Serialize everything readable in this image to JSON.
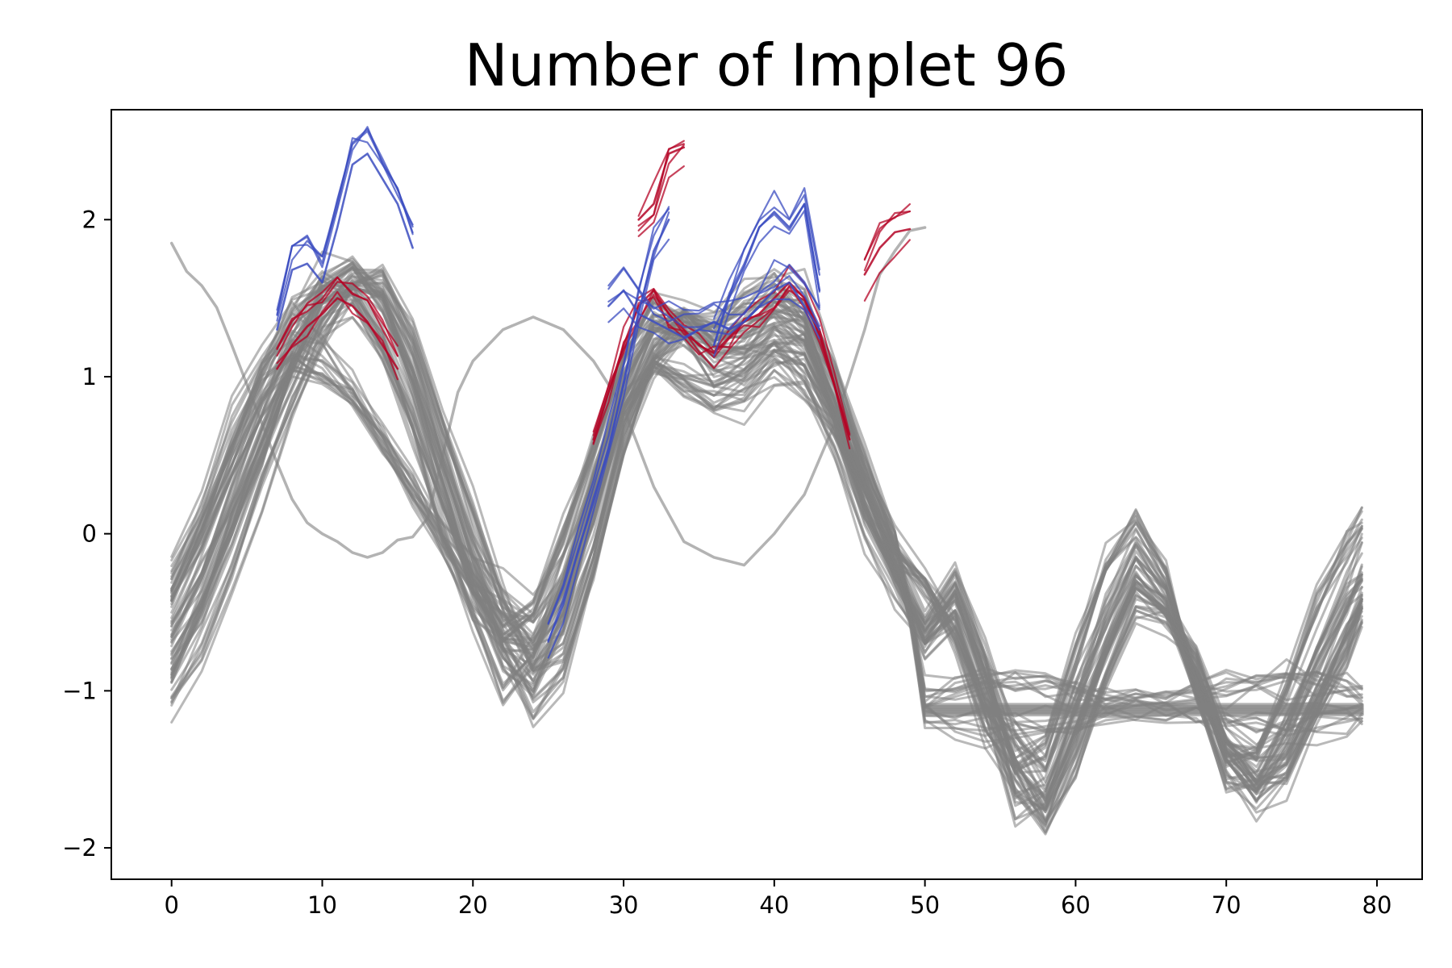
{
  "chart_data": {
    "type": "line",
    "title": "Number of Implet 96",
    "xlabel": "",
    "ylabel": "",
    "xlim": [
      -4,
      83
    ],
    "ylim": [
      -2.2,
      2.7
    ],
    "xticks": [
      0,
      10,
      20,
      30,
      40,
      50,
      60,
      70,
      80
    ],
    "yticks": [
      -2,
      -1,
      0,
      1,
      2
    ],
    "xtick_labels": [
      "0",
      "10",
      "20",
      "30",
      "40",
      "50",
      "60",
      "70",
      "80"
    ],
    "ytick_labels": [
      "−2",
      "−1",
      "0",
      "1",
      "2"
    ],
    "grid": false,
    "legend": "none",
    "colors": {
      "background_series": "#808080",
      "implet_positive": "#b40426",
      "implet_negative": "#3b4cc0",
      "implet_light": "#8db0fe"
    },
    "series_count_approx": 100,
    "representative_series": [
      {
        "role": "background",
        "x": [
          0,
          2,
          4,
          6,
          8,
          10,
          12,
          14,
          16,
          18,
          20,
          22,
          24,
          26,
          28,
          30,
          32,
          34,
          36,
          38,
          40,
          42,
          44,
          46,
          48,
          50,
          52,
          54,
          56,
          58,
          60,
          62,
          64,
          66,
          68,
          70,
          72,
          74,
          76,
          78,
          79
        ],
        "values": [
          -0.7,
          -0.3,
          0.2,
          0.7,
          1.2,
          1.6,
          1.7,
          1.5,
          1.0,
          0.4,
          -0.2,
          -0.6,
          -0.8,
          -0.4,
          0.3,
          0.9,
          1.3,
          1.4,
          1.3,
          1.4,
          1.5,
          1.4,
          0.9,
          0.3,
          -0.2,
          -0.6,
          -0.3,
          -0.8,
          -1.4,
          -1.6,
          -1.1,
          -0.6,
          -0.2,
          -0.4,
          -0.9,
          -1.4,
          -1.6,
          -1.3,
          -0.9,
          -0.5,
          -0.3
        ]
      },
      {
        "role": "background",
        "x": [
          0,
          2,
          4,
          6,
          8,
          10,
          12,
          14,
          16,
          18,
          20,
          22,
          24,
          26,
          28,
          30,
          32,
          34,
          36,
          38,
          40,
          42,
          44,
          46,
          48,
          50,
          52,
          54,
          56,
          58,
          60,
          62,
          64,
          66,
          68,
          70,
          72,
          74,
          76,
          78,
          79
        ],
        "values": [
          -0.5,
          -0.1,
          0.4,
          0.9,
          1.3,
          1.5,
          1.5,
          1.2,
          0.7,
          0.1,
          -0.4,
          -0.8,
          -0.6,
          -0.1,
          0.5,
          1.1,
          1.4,
          1.3,
          1.2,
          1.3,
          1.4,
          1.2,
          0.7,
          0.1,
          -0.3,
          -0.7,
          -0.5,
          -1.0,
          -1.6,
          -1.5,
          -0.9,
          -0.3,
          0.0,
          -0.3,
          -1.0,
          -1.5,
          -1.5,
          -1.1,
          -0.6,
          -0.2,
          0.0
        ]
      },
      {
        "role": "background",
        "x": [
          0,
          2,
          4,
          6,
          8,
          10,
          12,
          14,
          16,
          18,
          20,
          22,
          24,
          26,
          28,
          30,
          32,
          34,
          36,
          38,
          40,
          42,
          44,
          46,
          48,
          49,
          50,
          52,
          54,
          56,
          58,
          60,
          62,
          64,
          66,
          68,
          70,
          72,
          74,
          76,
          78,
          79
        ],
        "values": [
          -1.0,
          -0.6,
          -0.1,
          0.4,
          0.9,
          1.3,
          1.6,
          1.6,
          1.2,
          0.6,
          0.0,
          -0.6,
          -1.0,
          -0.8,
          -0.2,
          0.6,
          1.1,
          1.3,
          1.1,
          1.1,
          1.3,
          1.3,
          0.9,
          0.4,
          -0.1,
          -0.5,
          -1.1,
          -1.1,
          -1.1,
          -1.1,
          -1.1,
          -1.1,
          -1.1,
          -1.1,
          -1.1,
          -1.1,
          -1.1,
          -1.1,
          -1.1,
          -1.1,
          -1.1,
          -1.1
        ]
      },
      {
        "role": "background",
        "x": [
          0,
          2,
          4,
          6,
          8,
          10,
          12,
          14,
          16,
          18,
          20,
          22,
          24,
          26,
          28,
          30,
          32,
          34,
          36,
          38,
          40,
          42,
          44,
          46,
          48,
          50,
          52,
          54,
          56,
          58,
          60,
          62,
          64,
          66,
          68,
          70,
          72,
          74,
          76,
          78,
          79
        ],
        "values": [
          -0.3,
          0.1,
          0.6,
          1.0,
          1.2,
          1.1,
          0.9,
          0.6,
          0.3,
          0.0,
          -0.3,
          -0.5,
          -0.6,
          -0.3,
          0.2,
          0.8,
          1.1,
          1.0,
          0.9,
          1.0,
          1.2,
          1.1,
          0.8,
          0.3,
          -0.1,
          -0.3,
          -0.6,
          -1.1,
          -1.4,
          -1.7,
          -1.3,
          -0.8,
          -0.4,
          -0.5,
          -0.8,
          -1.3,
          -1.5,
          -1.4,
          -1.0,
          -0.6,
          -0.4
        ]
      },
      {
        "role": "background-outlier",
        "x": [
          0,
          1,
          2,
          3,
          4,
          5,
          6,
          7,
          8,
          9,
          10,
          11,
          12,
          13,
          14,
          15,
          16,
          17,
          18,
          19,
          20,
          22,
          24,
          26,
          28,
          30,
          32,
          34,
          36,
          38,
          40,
          42,
          44,
          46,
          47,
          48,
          49,
          50
        ],
        "values": [
          1.85,
          1.67,
          1.58,
          1.44,
          1.2,
          0.95,
          0.7,
          0.45,
          0.22,
          0.07,
          0.0,
          -0.05,
          -0.12,
          -0.15,
          -0.12,
          -0.04,
          -0.02,
          0.1,
          0.5,
          0.9,
          1.1,
          1.3,
          1.38,
          1.3,
          1.1,
          0.8,
          0.3,
          -0.05,
          -0.15,
          -0.2,
          0.0,
          0.25,
          0.7,
          1.3,
          1.65,
          1.8,
          1.93,
          1.95
        ]
      },
      {
        "role": "background-flat",
        "x": [
          50,
          79
        ],
        "values": [
          -1.12,
          -1.12
        ]
      },
      {
        "role": "implet-positive",
        "x": [
          7,
          8,
          9,
          10,
          11,
          12,
          13,
          14,
          15
        ],
        "values": [
          1.05,
          1.2,
          1.32,
          1.4,
          1.5,
          1.45,
          1.35,
          1.2,
          1.05
        ]
      },
      {
        "role": "implet-positive",
        "x": [
          28,
          29,
          30,
          31,
          32,
          33,
          34,
          35,
          36,
          37,
          38,
          39,
          40,
          41,
          42,
          43,
          44,
          45
        ],
        "values": [
          0.6,
          0.9,
          1.2,
          1.45,
          1.55,
          1.4,
          1.3,
          1.2,
          1.15,
          1.25,
          1.35,
          1.4,
          1.5,
          1.6,
          1.5,
          1.3,
          0.95,
          0.6
        ]
      },
      {
        "role": "implet-positive",
        "x": [
          31,
          32,
          33,
          34
        ],
        "values": [
          2.0,
          2.1,
          2.42,
          2.46
        ]
      },
      {
        "role": "implet-positive",
        "x": [
          46,
          47,
          48,
          49
        ],
        "values": [
          1.65,
          1.82,
          1.92,
          1.94
        ]
      },
      {
        "role": "implet-negative",
        "x": [
          7,
          8,
          9,
          10,
          11,
          12,
          13,
          14,
          15,
          16
        ],
        "values": [
          1.3,
          1.68,
          1.72,
          1.6,
          1.95,
          2.35,
          2.42,
          2.26,
          2.1,
          1.82
        ]
      },
      {
        "role": "implet-negative",
        "x": [
          25,
          26,
          27,
          28,
          29,
          30,
          31,
          32,
          33
        ],
        "values": [
          -0.68,
          -0.45,
          -0.1,
          0.2,
          0.55,
          0.95,
          1.4,
          1.8,
          2.0
        ]
      },
      {
        "role": "implet-negative",
        "x": [
          29,
          30,
          31,
          32,
          33,
          34,
          35,
          36,
          37,
          38,
          39,
          40,
          41,
          42,
          43
        ],
        "values": [
          1.45,
          1.55,
          1.4,
          1.35,
          1.3,
          1.25,
          1.3,
          1.35,
          1.3,
          1.35,
          1.45,
          1.55,
          1.6,
          1.45,
          1.3
        ]
      },
      {
        "role": "implet-negative",
        "x": [
          36,
          37,
          38,
          39,
          40,
          41,
          42,
          43
        ],
        "values": [
          1.2,
          1.5,
          1.7,
          1.95,
          2.05,
          1.95,
          2.1,
          1.55
        ]
      }
    ]
  }
}
